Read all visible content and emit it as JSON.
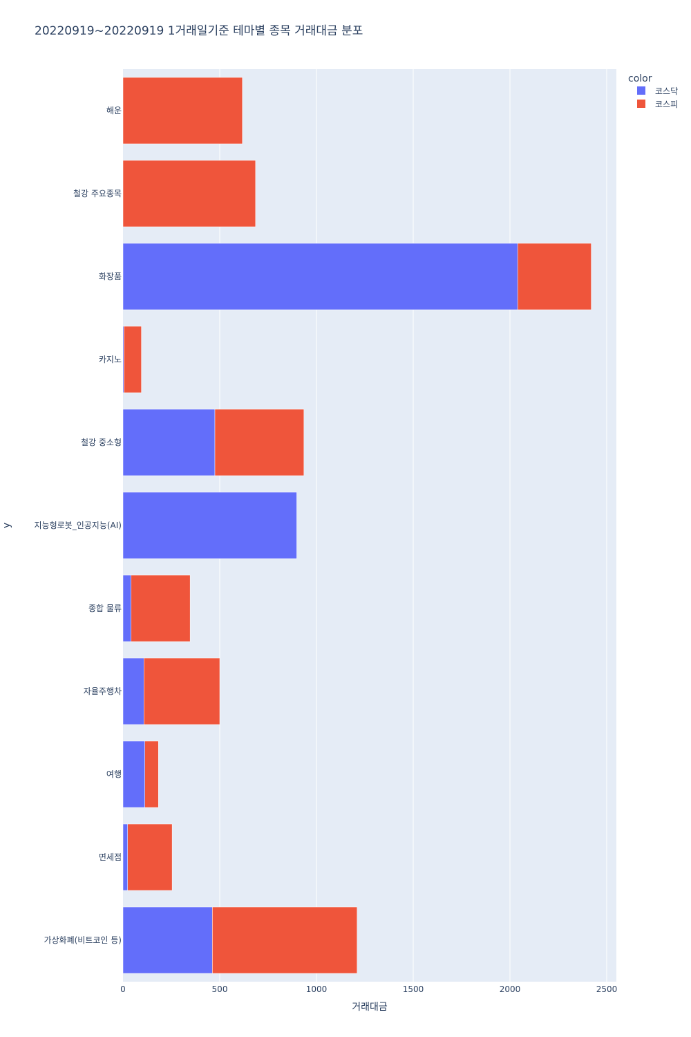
{
  "chart_data": {
    "type": "bar",
    "orientation": "horizontal",
    "barmode": "stack",
    "title": "20220919~20220919 1거래일기준 테마별 종목 거래대금 분포",
    "xlabel": "거래대금",
    "ylabel": "y",
    "xlim": [
      0,
      2550
    ],
    "xticks": [
      0,
      500,
      1000,
      1500,
      2000,
      2500
    ],
    "grid": true,
    "legend": {
      "title": "color",
      "placement": "top-right"
    },
    "categories": [
      "해운",
      "철강 주요종목",
      "화장품",
      "카지노",
      "철강 중소형",
      "지능형로봇_인공지능(AI)",
      "종합 물류",
      "자율주행차",
      "여행",
      "면세점",
      "가상화폐(비트코인 등)"
    ],
    "series": [
      {
        "name": "코스닥",
        "color": "#636efa",
        "values": [
          0,
          0,
          2040,
          5,
          475,
          898,
          42,
          108,
          113,
          24,
          462
        ]
      },
      {
        "name": "코스피",
        "color": "#ef553b",
        "values": [
          617,
          685,
          380,
          90,
          460,
          0,
          305,
          392,
          70,
          230,
          748
        ]
      }
    ]
  }
}
